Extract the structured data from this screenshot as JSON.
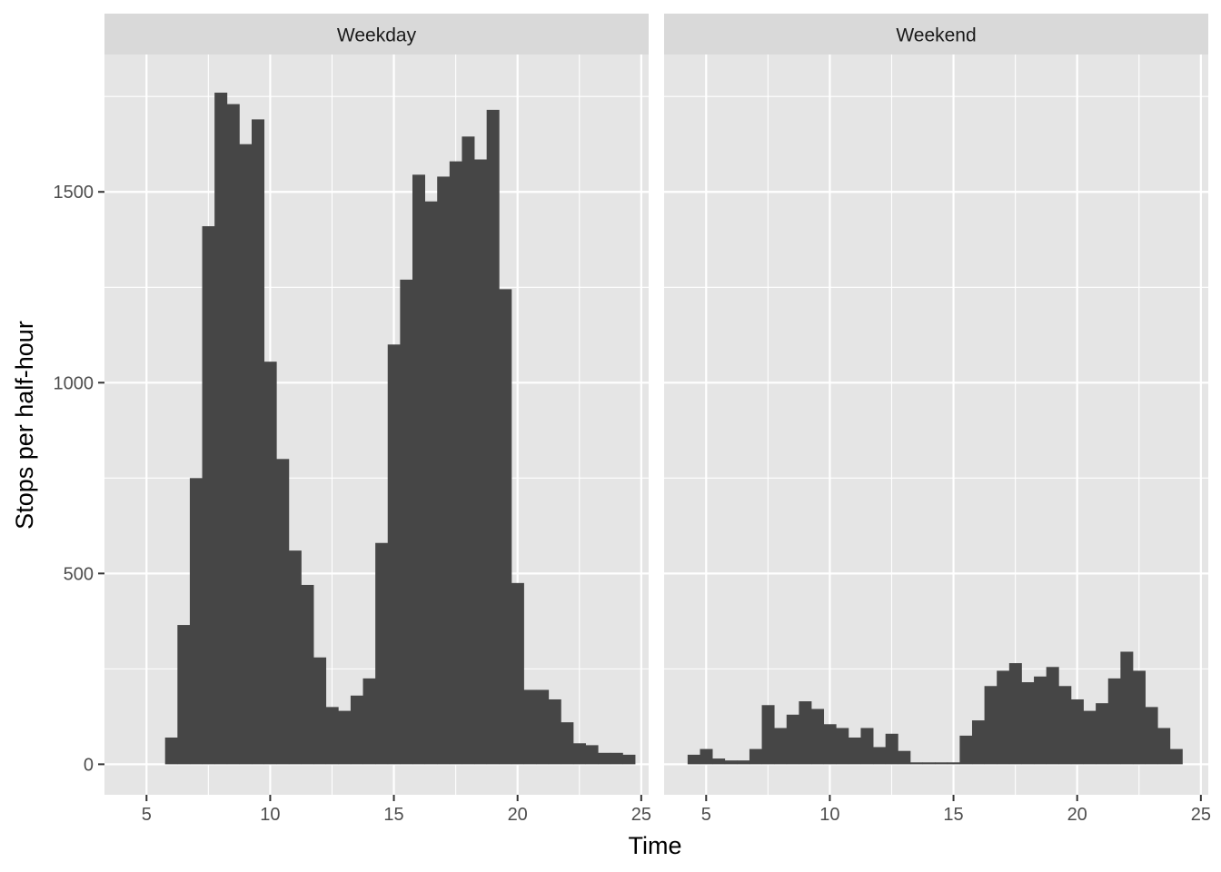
{
  "chart_data": {
    "type": "bar",
    "xlabel": "Time",
    "ylabel": "Stops per half-hour",
    "xlim": [
      3.3,
      25.3
    ],
    "ylim": [
      -80,
      1860
    ],
    "x_ticks": [
      5,
      10,
      15,
      20,
      25
    ],
    "y_ticks": [
      0,
      500,
      1000,
      1500
    ],
    "bin_width": 0.5,
    "grid": true,
    "legend": "none",
    "bar_color": "#464646",
    "panels": [
      {
        "name": "Weekday",
        "bin_start": 5.75,
        "values": [
          70,
          365,
          750,
          1410,
          1760,
          1730,
          1625,
          1690,
          1055,
          800,
          560,
          470,
          280,
          150,
          140,
          180,
          225,
          580,
          1100,
          1270,
          1545,
          1475,
          1540,
          1580,
          1645,
          1585,
          1715,
          1245,
          475,
          195,
          195,
          170,
          110,
          55,
          50,
          30,
          30,
          25
        ]
      },
      {
        "name": "Weekend",
        "bin_start": 4.25,
        "values": [
          25,
          40,
          15,
          10,
          10,
          40,
          155,
          95,
          130,
          165,
          145,
          105,
          95,
          70,
          95,
          45,
          80,
          35,
          5,
          5,
          5,
          5,
          75,
          115,
          205,
          245,
          265,
          215,
          230,
          255,
          205,
          170,
          140,
          160,
          225,
          295,
          245,
          150,
          95,
          40
        ]
      }
    ]
  }
}
